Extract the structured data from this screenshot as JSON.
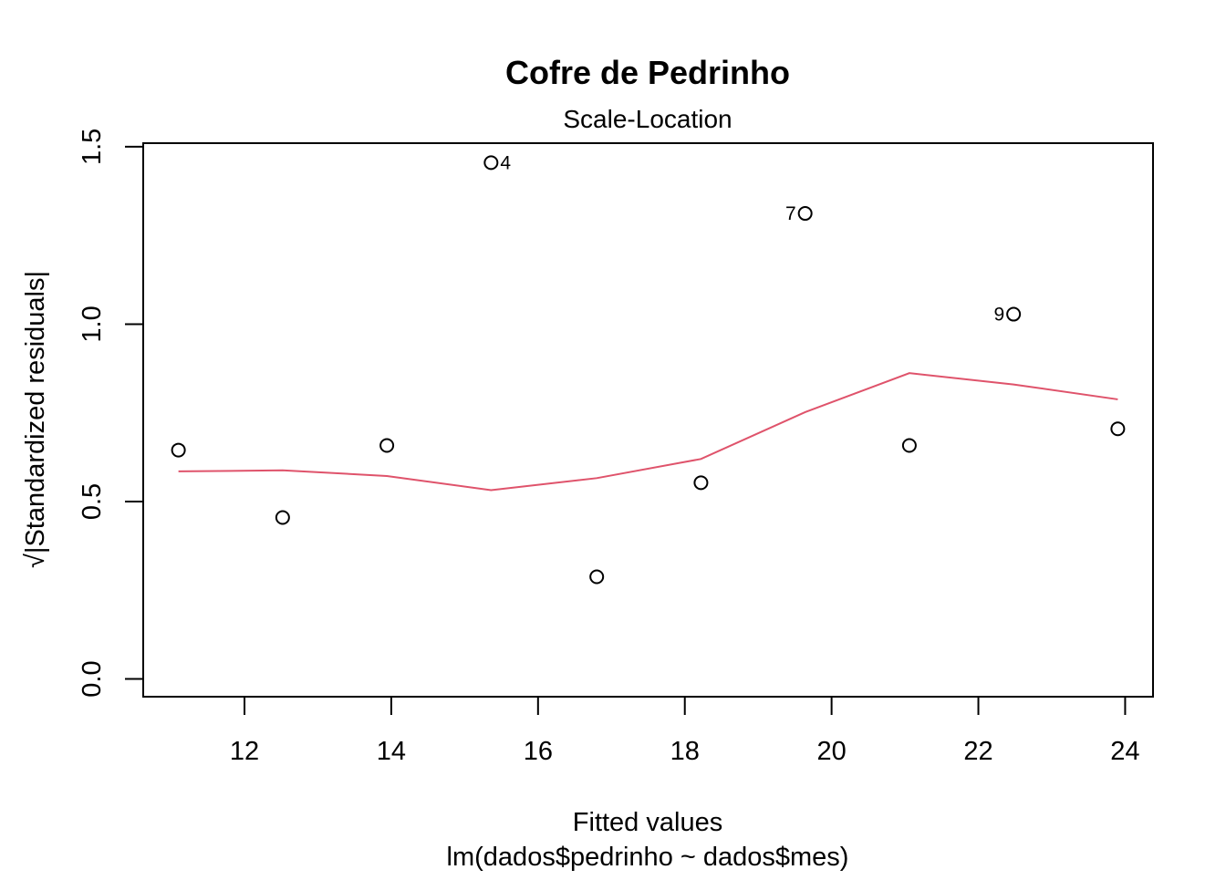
{
  "chart_data": {
    "type": "scatter",
    "title": "Cofre de Pedrinho",
    "subtitle": "Scale-Location",
    "xlabel": "Fitted values",
    "xlabel_sub": "lm(dados$pedrinho ~ dados$mes)",
    "ylabel": "√|Standardized residuals|",
    "xlim": [
      10.62,
      24.38
    ],
    "ylim": [
      -0.05,
      1.51
    ],
    "xticks": [
      12,
      14,
      16,
      18,
      20,
      22,
      24
    ],
    "xtick_labels": [
      "12",
      "14",
      "16",
      "18",
      "20",
      "22",
      "24"
    ],
    "yticks": [
      0.0,
      0.5,
      1.0,
      1.5
    ],
    "ytick_labels": [
      "0.0",
      "0.5",
      "1.0",
      "1.5"
    ],
    "grid": false,
    "points": {
      "x": [
        11.1,
        12.52,
        13.94,
        15.36,
        16.8,
        18.22,
        19.64,
        21.06,
        22.48,
        23.9
      ],
      "y": [
        0.645,
        0.455,
        0.658,
        1.455,
        0.288,
        0.553,
        1.312,
        0.658,
        1.028,
        0.705
      ],
      "labels": [
        "",
        "",
        "",
        "4",
        "",
        "",
        "7",
        "",
        "9",
        ""
      ],
      "label_sides": [
        "",
        "",
        "",
        "right",
        "",
        "",
        "left",
        "",
        "left",
        ""
      ]
    },
    "smooth_line": {
      "color": "#DF536B",
      "x": [
        11.1,
        12.52,
        13.94,
        15.36,
        16.8,
        18.22,
        19.64,
        21.06,
        22.48,
        23.9
      ],
      "y": [
        0.585,
        0.588,
        0.572,
        0.532,
        0.566,
        0.62,
        0.752,
        0.862,
        0.83,
        0.788
      ]
    }
  }
}
